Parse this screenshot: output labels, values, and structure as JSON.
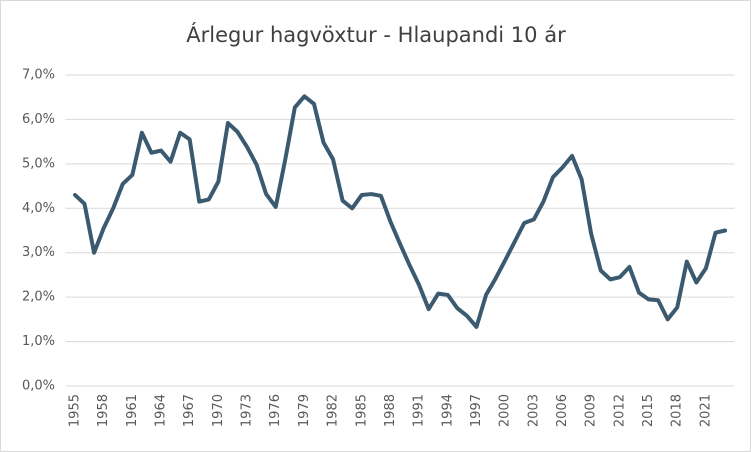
{
  "chart_data": {
    "type": "line",
    "title": "Árlegur hagvöxtur - Hlaupandi 10 ár",
    "x": [
      1955,
      1956,
      1957,
      1958,
      1959,
      1960,
      1961,
      1962,
      1963,
      1964,
      1965,
      1966,
      1967,
      1968,
      1969,
      1970,
      1971,
      1972,
      1973,
      1974,
      1975,
      1976,
      1977,
      1978,
      1979,
      1980,
      1981,
      1982,
      1983,
      1984,
      1985,
      1986,
      1987,
      1988,
      1989,
      1990,
      1991,
      1992,
      1993,
      1994,
      1995,
      1996,
      1997,
      1998,
      1999,
      2000,
      2001,
      2002,
      2003,
      2004,
      2005,
      2006,
      2007,
      2008,
      2009,
      2010,
      2011,
      2012,
      2013,
      2014,
      2015,
      2016,
      2017,
      2018,
      2019,
      2020,
      2021,
      2022,
      2023
    ],
    "series": [
      {
        "color": "#3b5a70",
        "values": [
          4.3,
          4.1,
          3.0,
          3.55,
          4.0,
          4.55,
          4.75,
          5.7,
          5.25,
          5.3,
          5.05,
          5.7,
          5.55,
          4.15,
          4.2,
          4.6,
          5.92,
          5.72,
          5.38,
          4.98,
          4.32,
          4.03,
          5.1,
          6.27,
          6.52,
          6.35,
          5.48,
          5.1,
          4.17,
          4.0,
          4.3,
          4.32,
          4.28,
          3.7,
          3.2,
          2.72,
          2.27,
          1.73,
          2.08,
          2.05,
          1.75,
          1.58,
          1.33,
          2.05,
          2.42,
          2.83,
          3.25,
          3.67,
          3.75,
          4.15,
          4.7,
          4.92,
          5.18,
          4.65,
          3.42,
          2.6,
          2.4,
          2.45,
          2.68,
          2.1,
          1.95,
          1.93,
          1.5,
          1.77,
          2.8,
          2.33,
          2.65,
          3.45,
          3.5
        ]
      }
    ],
    "xlim": [
      1954,
      2024
    ],
    "xticks": [
      1955,
      1958,
      1961,
      1964,
      1967,
      1970,
      1973,
      1976,
      1979,
      1982,
      1985,
      1988,
      1991,
      1994,
      1997,
      2000,
      2003,
      2006,
      2009,
      2012,
      2015,
      2018,
      2021
    ],
    "ylim": [
      0,
      7
    ],
    "yticks": [
      {
        "value": 0,
        "label": "0,0%"
      },
      {
        "value": 1,
        "label": "1,0%"
      },
      {
        "value": 2,
        "label": "2,0%"
      },
      {
        "value": 3,
        "label": "3,0%"
      },
      {
        "value": 4,
        "label": "4,0%"
      },
      {
        "value": 5,
        "label": "5,0%"
      },
      {
        "value": 6,
        "label": "6,0%"
      },
      {
        "value": 7,
        "label": "7,0%"
      }
    ],
    "grid": true
  }
}
